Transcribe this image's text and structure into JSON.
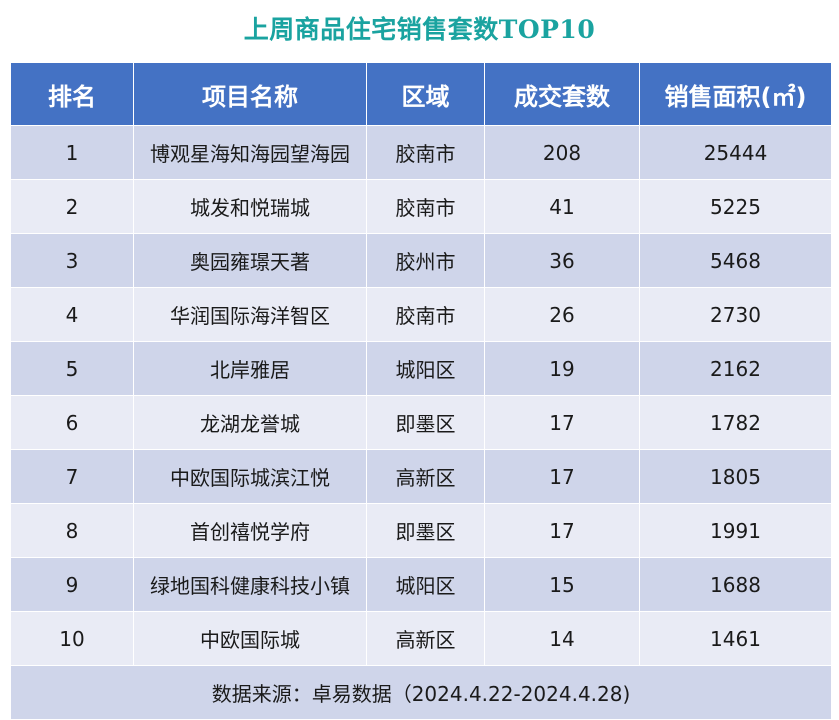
{
  "title": "上周商品住宅销售套数TOP10",
  "headers": [
    "排名",
    "项目名称",
    "区域",
    "成交套数",
    "销售面积(㎡)"
  ],
  "rows": [
    [
      "1",
      "博观星海知海园望海园",
      "胶南市",
      "208",
      "25444"
    ],
    [
      "2",
      "城发和悦瑞城",
      "胶南市",
      "41",
      "5225"
    ],
    [
      "3",
      "奥园雍璟天著",
      "胶州市",
      "36",
      "5468"
    ],
    [
      "4",
      "华润国际海洋智区",
      "胶南市",
      "26",
      "2730"
    ],
    [
      "5",
      "北岸雅居",
      "城阳区",
      "19",
      "2162"
    ],
    [
      "6",
      "龙湖龙誉城",
      "即墨区",
      "17",
      "1782"
    ],
    [
      "7",
      "中欧国际城滨江悦",
      "高新区",
      "17",
      "1805"
    ],
    [
      "8",
      "首创禧悦学府",
      "即墨区",
      "17",
      "1991"
    ],
    [
      "9",
      "绿地国科健康科技小镇",
      "城阳区",
      "15",
      "1688"
    ],
    [
      "10",
      "中欧国际城",
      "高新区",
      "14",
      "1461"
    ]
  ],
  "source": "数据来源：卓易数据（2024.4.22-2024.4.28)",
  "colors": {
    "title": "#1aa3a0",
    "header_bg": "#4472c4",
    "row_dark": "#cfd5ea",
    "row_light": "#e9ebf5"
  }
}
